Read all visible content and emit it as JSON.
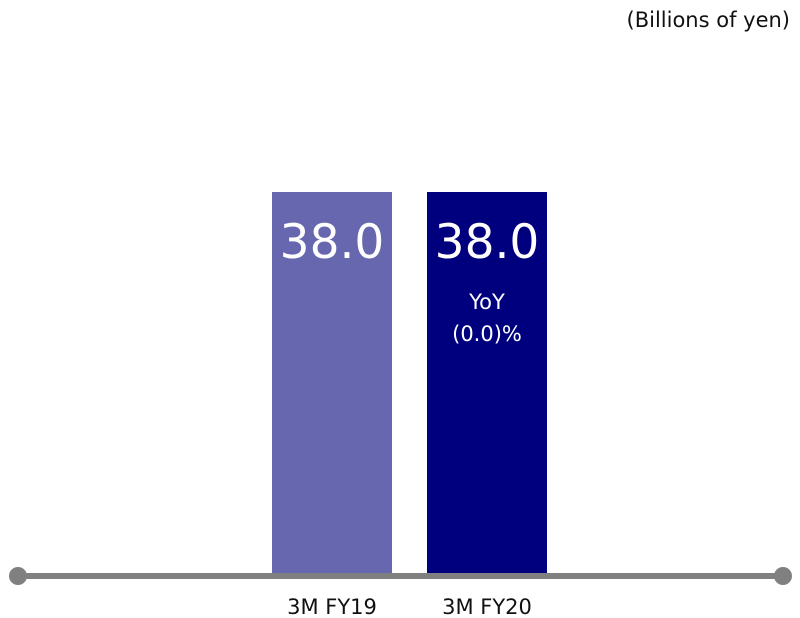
{
  "unit_label": "(Billions of yen)",
  "colors": {
    "axis": "#808080",
    "text": "#111111",
    "label_on_bar": "#ffffff"
  },
  "chart_data": {
    "type": "bar",
    "categories": [
      "3M FY19",
      "3M FY20"
    ],
    "values": [
      38.0,
      38.0
    ],
    "value_labels": [
      "38.0",
      "38.0"
    ],
    "bar_colors": [
      "#6767b0",
      "#00007e"
    ],
    "annotations": [
      {
        "category": "3M FY20",
        "lines": [
          "YoY",
          "(0.0)%"
        ]
      }
    ],
    "ylim": [
      0,
      57
    ]
  }
}
